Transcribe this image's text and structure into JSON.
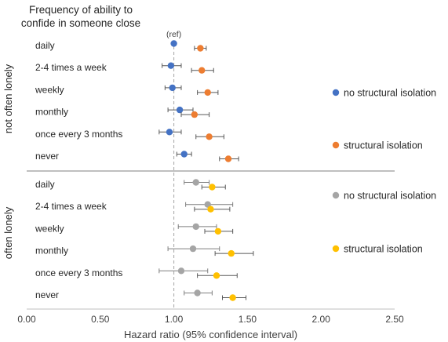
{
  "chart_data": {
    "type": "scatter",
    "title": "Frequency of ability to confide in someone close",
    "xlabel": "Hazard ratio (95% confidence interval)",
    "xlim": [
      0,
      2.5
    ],
    "xticks": [
      "0.00",
      "0.50",
      "1.00",
      "1.50",
      "2.00",
      "2.50"
    ],
    "reference_line": 1.0,
    "reference_label": "(ref)",
    "categories": [
      "daily",
      "2-4 times a week",
      "weekly",
      "monthly",
      "once every 3 months",
      "never"
    ],
    "panels": [
      {
        "label": "not often lonely",
        "series": [
          {
            "name": "no structural isolation",
            "color": "#4472c4",
            "values": [
              1.0,
              0.98,
              0.99,
              1.04,
              0.97,
              1.07
            ],
            "ci_low": [
              1.0,
              0.92,
              0.94,
              0.96,
              0.9,
              1.02
            ],
            "ci_high": [
              1.0,
              1.05,
              1.05,
              1.13,
              1.05,
              1.12
            ]
          },
          {
            "name": "structural isolation",
            "color": "#ed7d31",
            "values": [
              1.18,
              1.19,
              1.23,
              1.14,
              1.24,
              1.37
            ],
            "ci_low": [
              1.14,
              1.12,
              1.16,
              1.05,
              1.15,
              1.31
            ],
            "ci_high": [
              1.22,
              1.27,
              1.3,
              1.24,
              1.34,
              1.44
            ]
          }
        ]
      },
      {
        "label": "often lonely",
        "series": [
          {
            "name": "no structural isolation",
            "color": "#a5a5a5",
            "values": [
              1.15,
              1.23,
              1.15,
              1.13,
              1.05,
              1.16
            ],
            "ci_low": [
              1.07,
              1.08,
              1.03,
              0.96,
              0.9,
              1.07
            ],
            "ci_high": [
              1.24,
              1.4,
              1.29,
              1.31,
              1.23,
              1.26
            ]
          },
          {
            "name": "structural isolation",
            "color": "#ffc000",
            "values": [
              1.26,
              1.25,
              1.3,
              1.39,
              1.29,
              1.4
            ],
            "ci_low": [
              1.19,
              1.14,
              1.21,
              1.28,
              1.16,
              1.33
            ],
            "ci_high": [
              1.35,
              1.38,
              1.4,
              1.54,
              1.43,
              1.49
            ]
          }
        ]
      }
    ]
  }
}
